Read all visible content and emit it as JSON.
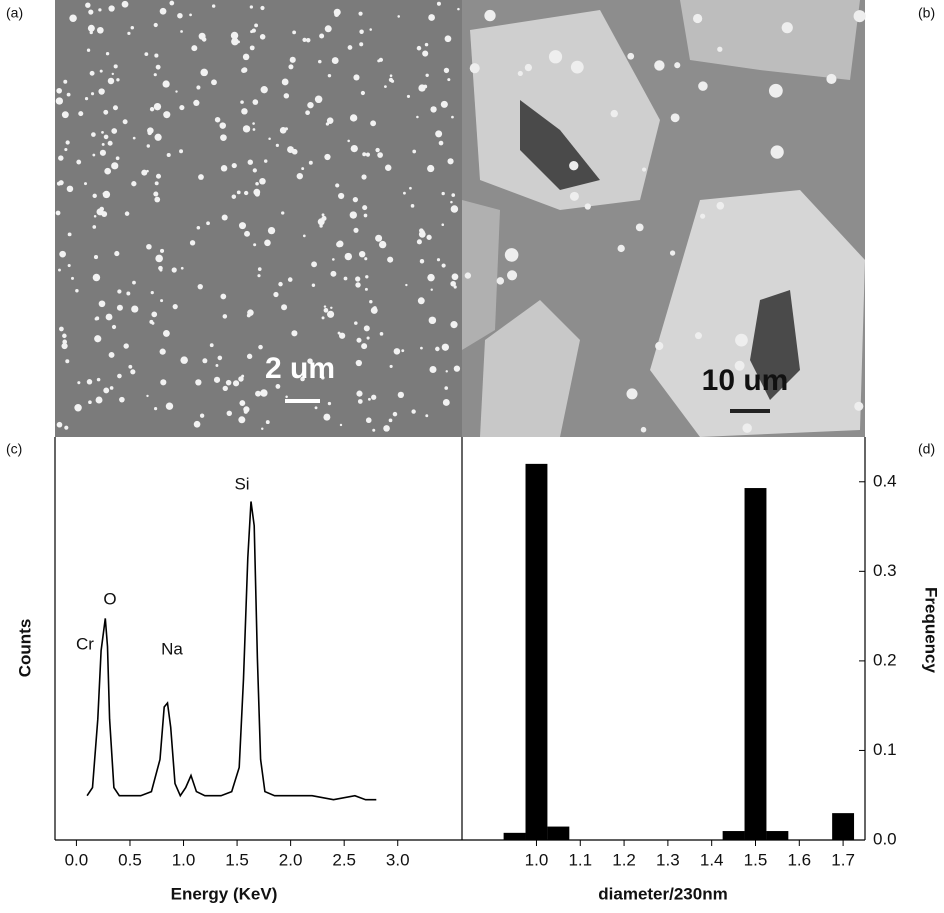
{
  "figure": {
    "panel_labels": [
      "(a)",
      "(b)",
      "(c)",
      "(d)"
    ],
    "scale_bars": [
      "2 um",
      "10 um"
    ]
  },
  "chart_data": [
    {
      "type": "line",
      "x_label": "Energy (KeV)",
      "y_label": "Counts",
      "annotations": [
        "Cr",
        "O",
        "Na",
        "Si"
      ],
      "x": [
        0.1,
        0.15,
        0.2,
        0.23,
        0.27,
        0.29,
        0.31,
        0.35,
        0.4,
        0.5,
        0.6,
        0.7,
        0.78,
        0.82,
        0.85,
        0.88,
        0.92,
        0.97,
        1.02,
        1.07,
        1.12,
        1.2,
        1.35,
        1.45,
        1.52,
        1.56,
        1.6,
        1.63,
        1.66,
        1.69,
        1.72,
        1.76,
        1.85,
        2.0,
        2.2,
        2.4,
        2.6,
        2.7,
        2.8
      ],
      "values": [
        11,
        13,
        30,
        47,
        55,
        48,
        30,
        13,
        11,
        11,
        11,
        12,
        20,
        33,
        34,
        28,
        14,
        11,
        13,
        16,
        12,
        11,
        11,
        12,
        18,
        40,
        70,
        84,
        78,
        45,
        20,
        12,
        11,
        11,
        11,
        10,
        11,
        10,
        10
      ],
      "color": "#000000",
      "xlim": [
        -0.2,
        3.6
      ],
      "ylim": [
        0,
        100
      ],
      "xticks": [
        {
          "value": 0,
          "label": "0.0"
        },
        0.5,
        {
          "value": 1,
          "label": "1.0"
        },
        1.5,
        {
          "value": 2,
          "label": "2.0"
        },
        2.5,
        {
          "value": 3,
          "label": "3.0"
        }
      ]
    },
    {
      "type": "histogram",
      "x_label": "diameter/230nm",
      "y_label": "Frequency",
      "bins": [
        0.925,
        0.975,
        1.025,
        1.075,
        1.125,
        1.175,
        1.225,
        1.275,
        1.325,
        1.375,
        1.425,
        1.475,
        1.525,
        1.575,
        1.625,
        1.675,
        1.725
      ],
      "values": [
        0.008,
        0.42,
        0.015,
        0,
        0,
        0,
        0,
        0,
        0,
        0,
        0.01,
        0.393,
        0.01,
        0,
        0,
        0.03
      ],
      "color": "#000000",
      "xlim": [
        0.83,
        1.75
      ],
      "ylim": [
        0,
        0.45
      ],
      "xticks": [
        {
          "value": 1,
          "label": "1.0"
        },
        1.1,
        1.2,
        1.3,
        1.4,
        1.5,
        1.6,
        1.7
      ],
      "yticks": [
        {
          "value": 0,
          "label": "0.0"
        },
        0.1,
        0.2,
        0.3,
        0.4
      ]
    }
  ]
}
